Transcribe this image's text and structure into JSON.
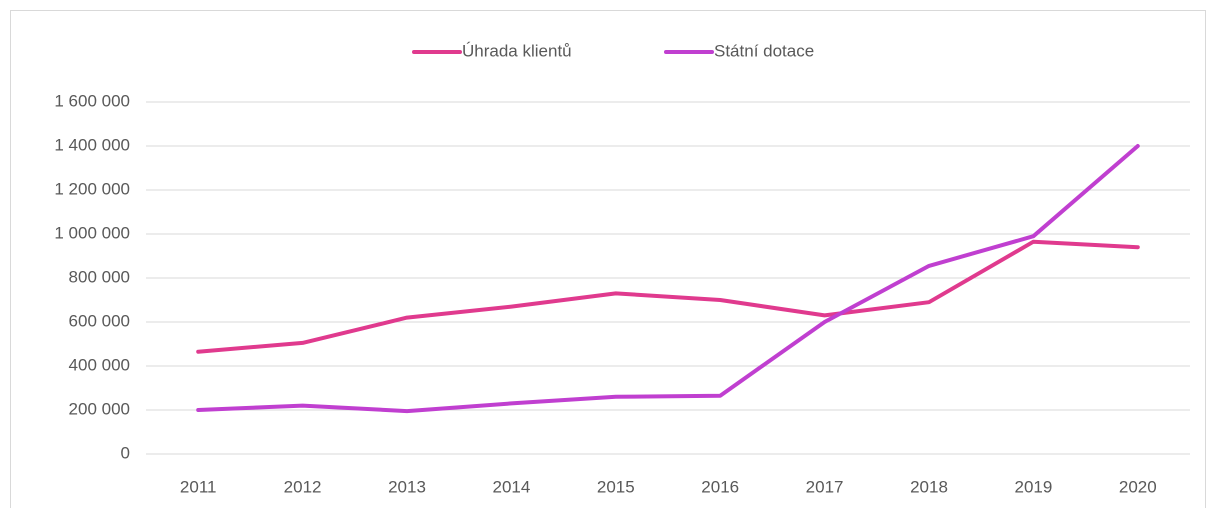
{
  "chart_data": {
    "type": "line",
    "categories": [
      "2011",
      "2012",
      "2013",
      "2014",
      "2015",
      "2016",
      "2017",
      "2018",
      "2019",
      "2020"
    ],
    "series": [
      {
        "name": "Úhrada klientů",
        "color": "#e03a8e",
        "values": [
          465000,
          505000,
          620000,
          670000,
          730000,
          700000,
          630000,
          690000,
          965000,
          940000
        ]
      },
      {
        "name": "Státní dotace",
        "color": "#c03fd0",
        "values": [
          200000,
          220000,
          195000,
          230000,
          260000,
          265000,
          600000,
          855000,
          990000,
          1400000
        ]
      }
    ],
    "ylim": [
      0,
      1600000
    ],
    "yticks": [
      0,
      {
        "value": 200000,
        "label": "200 000"
      },
      {
        "value": 400000,
        "label": "400 000"
      },
      {
        "value": 600000,
        "label": "600 000"
      },
      {
        "value": 800000,
        "label": "800 000"
      },
      {
        "value": 1000000,
        "label": "1 000 000"
      },
      {
        "value": 1200000,
        "label": "1 200 000"
      },
      {
        "value": 1400000,
        "label": "1 400 000"
      },
      {
        "value": 1600000,
        "label": "1 600 000"
      }
    ],
    "grid": true,
    "legend": "top"
  }
}
